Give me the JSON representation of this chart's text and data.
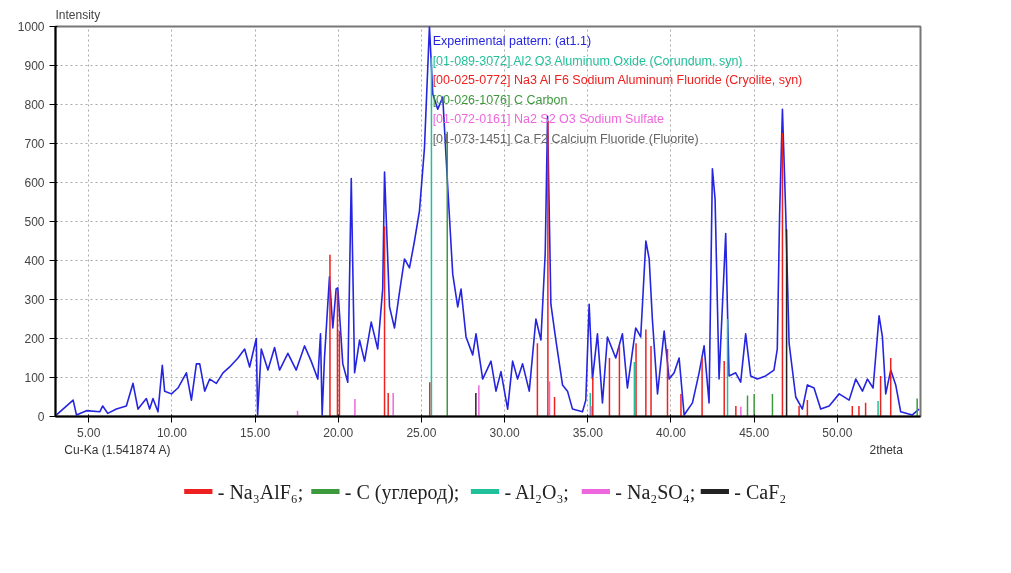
{
  "chart_data": {
    "type": "line",
    "title": "Intensity",
    "xlabel": "2theta",
    "annotations": [
      "Experimental pattern: (at1.1)",
      "[01-089-3072] Al2 O3 Aluminum Oxide (Corundum, syn)",
      "[00-025-0772] Na3 Al F6 Sodium Aluminum Fluoride (Cryolite, syn)",
      "[00-026-1076] C Carbon",
      "[01-072-0161] Na2 S2 O3 Sodium Sulfate",
      "[01-073-1451] Ca F2 Calcium Fluoride (Fluorite)",
      "Cu-Ka (1.541874 A)"
    ],
    "xlim": [
      3,
      55
    ],
    "ylim": [
      0,
      1000
    ],
    "xticks": [
      {
        "value": 5,
        "label": "5.00"
      },
      {
        "value": 10,
        "label": "10.00"
      },
      {
        "value": 15,
        "label": "15.00"
      },
      {
        "value": 20,
        "label": "20.00"
      },
      {
        "value": 25,
        "label": "25.00"
      },
      {
        "value": 30,
        "label": "30.00"
      },
      {
        "value": 35,
        "label": "35.00"
      },
      {
        "value": 40,
        "label": "40.00"
      },
      {
        "value": 45,
        "label": "45.00"
      },
      {
        "value": 50,
        "label": "50.00"
      }
    ],
    "yticks": [
      0,
      100,
      200,
      300,
      400,
      500,
      600,
      700,
      800,
      900,
      1000
    ],
    "grid": true,
    "legend": "bottom",
    "line_style": "solid",
    "series": [
      {
        "color": "#2525e0",
        "x": [
          3.06,
          4.06,
          4.26,
          4.86,
          5.66,
          5.84,
          6.14,
          6.66,
          7.26,
          7.66,
          7.96,
          8.46,
          8.66,
          8.86,
          9.16,
          9.42,
          9.56,
          9.97,
          10.36,
          10.87,
          11.17,
          11.47,
          11.67,
          11.97,
          12.27,
          12.67,
          13.07,
          13.47,
          13.97,
          14.37,
          14.67,
          15.07,
          15.15,
          15.37,
          15.77,
          16.17,
          16.47,
          16.97,
          17.47,
          17.97,
          18.37,
          18.77,
          18.93,
          19.03,
          19.17,
          19.47,
          19.67,
          19.87,
          19.97,
          20.27,
          20.57,
          20.78,
          20.98,
          21.28,
          21.58,
          21.98,
          22.37,
          22.67,
          22.78,
          23.08,
          23.38,
          23.68,
          23.98,
          24.28,
          24.58,
          24.88,
          25.18,
          25.48,
          25.68,
          25.98,
          26.28,
          26.58,
          26.88,
          27.18,
          27.38,
          27.68,
          28.08,
          28.28,
          28.68,
          29.18,
          29.48,
          29.78,
          30.18,
          30.48,
          30.78,
          31.08,
          31.48,
          31.88,
          32.18,
          32.44,
          32.58,
          32.78,
          33.08,
          33.48,
          33.78,
          34.08,
          34.68,
          34.88,
          35.08,
          35.28,
          35.58,
          35.88,
          36.18,
          36.68,
          37.08,
          37.38,
          37.88,
          38.18,
          38.49,
          38.69,
          38.88,
          39.19,
          39.59,
          39.89,
          40.19,
          40.49,
          40.79,
          41.29,
          41.69,
          41.99,
          42.29,
          42.49,
          42.65,
          42.89,
          43.29,
          43.49,
          43.89,
          44.19,
          44.49,
          44.79,
          45.19,
          45.69,
          46.19,
          46.39,
          46.53,
          46.7,
          46.9,
          47.1,
          47.5,
          47.9,
          48.2,
          48.6,
          49.0,
          49.51,
          50.11,
          50.71,
          51.11,
          51.51,
          51.81,
          52.15,
          52.51,
          52.71,
          52.91,
          53.21,
          53.51,
          53.81,
          54.51,
          54.91
        ],
        "values": [
          4,
          42,
          4,
          15,
          12,
          27,
          8,
          19,
          27,
          85,
          19,
          46,
          19,
          46,
          12,
          131,
          65,
          58,
          73,
          112,
          42,
          135,
          135,
          65,
          96,
          85,
          112,
          127,
          150,
          173,
          127,
          200,
          4,
          173,
          119,
          177,
          119,
          162,
          119,
          181,
          142,
          96,
          212,
          4,
          150,
          358,
          227,
          327,
          330,
          135,
          88,
          610,
          112,
          196,
          142,
          242,
          173,
          327,
          627,
          281,
          227,
          319,
          404,
          381,
          450,
          527,
          688,
          1000,
          827,
          788,
          819,
          588,
          365,
          281,
          327,
          204,
          158,
          212,
          96,
          142,
          65,
          115,
          19,
          142,
          96,
          135,
          65,
          250,
          196,
          419,
          770,
          288,
          196,
          81,
          65,
          19,
          12,
          42,
          288,
          96,
          212,
          35,
          204,
          150,
          212,
          73,
          227,
          204,
          450,
          404,
          250,
          58,
          219,
          96,
          112,
          150,
          4,
          35,
          112,
          181,
          35,
          635,
          558,
          96,
          469,
          104,
          112,
          88,
          212,
          104,
          96,
          104,
          119,
          173,
          519,
          788,
          519,
          188,
          50,
          19,
          81,
          73,
          19,
          27,
          58,
          42,
          96,
          65,
          96,
          73,
          258,
          204,
          58,
          119,
          81,
          12,
          4,
          19
        ]
      },
      {
        "type": "bar",
        "name": "- Na₃AlF₆;",
        "color": "#ee2020",
        "x": [
          19.5,
          19.95,
          20.07,
          22.78,
          23.0,
          25.5,
          31.97,
          32.6,
          33.0,
          35.3,
          36.3,
          36.9,
          37.9,
          38.49,
          38.8,
          39.79,
          40.6,
          41.87,
          43.2,
          43.9,
          46.7,
          47.7,
          48.2,
          50.9,
          51.3,
          51.7,
          52.6,
          53.21
        ],
        "values": [
          415,
          320,
          219,
          488,
          60,
          88,
          188,
          758,
          50,
          100,
          150,
          181,
          188,
          223,
          181,
          173,
          58,
          150,
          142,
          27,
          727,
          27,
          42,
          27,
          27,
          35,
          104,
          150
        ]
      },
      {
        "type": "bar",
        "name": "- C (углерод);",
        "color": "#3c9a3c",
        "x": [
          26.55,
          44.6,
          45.0,
          46.1,
          54.8
        ],
        "values": [
          730,
          54,
          58,
          58,
          46
        ]
      },
      {
        "type": "bar",
        "name": "- Al₂O₃;",
        "color": "#20c09a",
        "x": [
          25.6,
          35.15,
          37.8,
          43.4,
          52.45
        ],
        "values": [
          920,
          60,
          140,
          250,
          40
        ]
      },
      {
        "type": "bar",
        "name": "- Na₂SO₄;",
        "color": "#ee66dd",
        "x": [
          17.55,
          21.0,
          23.3,
          28.45,
          32.7,
          35.2,
          44.2
        ],
        "values": [
          15,
          45,
          60,
          80,
          90,
          27,
          25
        ]
      },
      {
        "type": "bar",
        "name": "- CaF₂",
        "color": "#222222",
        "x": [
          28.27,
          46.95
        ],
        "values": [
          60,
          480
        ]
      }
    ]
  }
}
